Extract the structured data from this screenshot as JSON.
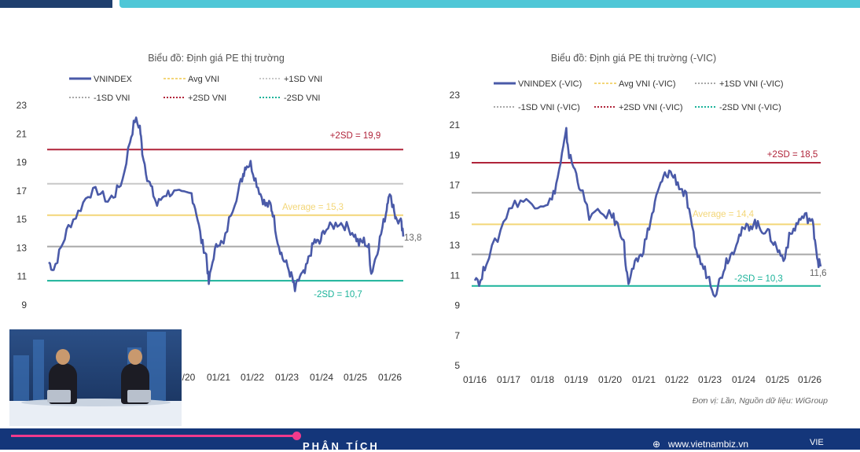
{
  "chart_data": [
    {
      "type": "line",
      "title": "Biểu đồ: Định giá PE thị trường",
      "x_tick_labels": [
        "/20",
        "01/21",
        "01/22",
        "01/23",
        "01/24",
        "01/25",
        "01/26"
      ],
      "y_ticks": [
        9,
        11,
        13,
        15,
        17,
        19,
        21,
        23
      ],
      "ylim": [
        9,
        23
      ],
      "x_range": [
        "01/16",
        "03/26"
      ],
      "legend_placement": "top",
      "series": [
        {
          "name": "VNINDEX",
          "color": "#4a5aa8",
          "style": "solid",
          "points": [
            [
              0,
              12.0
            ],
            [
              2,
              11.5
            ],
            [
              5,
              13.0
            ],
            [
              8,
              14.5
            ],
            [
              12,
              15.5
            ],
            [
              16,
              16.8
            ],
            [
              20,
              17.0
            ],
            [
              24,
              16.3
            ],
            [
              27,
              16.8
            ],
            [
              30,
              17.8
            ],
            [
              33,
              20.5
            ],
            [
              35,
              22.0
            ],
            [
              37,
              21.5
            ],
            [
              38,
              19.8
            ],
            [
              40,
              18.0
            ],
            [
              42,
              17.0
            ],
            [
              44,
              16.0
            ],
            [
              47,
              16.8
            ],
            [
              50,
              16.9
            ],
            [
              54,
              16.7
            ],
            [
              58,
              16.8
            ],
            [
              60,
              15.5
            ],
            [
              62,
              13.5
            ],
            [
              64,
              12.5
            ],
            [
              65,
              10.5
            ],
            [
              67,
              12.5
            ],
            [
              69,
              13.5
            ],
            [
              71,
              13.2
            ],
            [
              74,
              15.5
            ],
            [
              77,
              17.0
            ],
            [
              79,
              18.2
            ],
            [
              80,
              18.8
            ],
            [
              82,
              18.9
            ],
            [
              84,
              17.8
            ],
            [
              86,
              16.8
            ],
            [
              88,
              16.0
            ],
            [
              90,
              16.0
            ],
            [
              91,
              15.5
            ],
            [
              93,
              13.5
            ],
            [
              95,
              12.3
            ],
            [
              97,
              11.7
            ],
            [
              99,
              10.8
            ],
            [
              100,
              10.0
            ],
            [
              102,
              11.0
            ],
            [
              104,
              11.2
            ],
            [
              106,
              12.5
            ],
            [
              108,
              13.5
            ],
            [
              110,
              13.3
            ],
            [
              112,
              14.3
            ],
            [
              115,
              14.5
            ],
            [
              118,
              14.8
            ],
            [
              121,
              14.5
            ],
            [
              124,
              14.0
            ],
            [
              126,
              13.3
            ],
            [
              128,
              13.5
            ],
            [
              130,
              13.0
            ],
            [
              131,
              11.2
            ],
            [
              133,
              12.5
            ],
            [
              135,
              14.0
            ],
            [
              137,
              15.5
            ],
            [
              138,
              16.8
            ],
            [
              140,
              16.0
            ],
            [
              141,
              15.0
            ],
            [
              143,
              14.8
            ],
            [
              144,
              13.8
            ]
          ]
        },
        {
          "name": "Avg VNI",
          "color": "#f3d678",
          "style": "solid",
          "value": 15.3
        },
        {
          "name": "+1SD VNI",
          "color": "#c8c8c8",
          "style": "solid",
          "value": 17.5
        },
        {
          "name": "-1SD VNI",
          "color": "#a8a8a8",
          "style": "solid",
          "value": 13.1
        },
        {
          "name": "+2SD VNI",
          "color": "#b0243a",
          "style": "solid",
          "value": 19.9
        },
        {
          "name": "-2SD VNI",
          "color": "#1bb39a",
          "style": "solid",
          "value": 10.7
        }
      ],
      "annotations": [
        {
          "text": "+2SD = 19,9",
          "color": "#b0243a",
          "value": 19.9
        },
        {
          "text": "Average = 15,3",
          "color": "#f3d678",
          "value": 15.3
        },
        {
          "text": "-2SD = 10,7",
          "color": "#1bb39a",
          "value": 10.7
        },
        {
          "text": "13,8",
          "color": "#666666",
          "value": 13.8
        }
      ]
    },
    {
      "type": "line",
      "title": "Biểu đồ: Định giá PE thị trường (-VIC)",
      "x_tick_labels": [
        "01/16",
        "01/17",
        "01/18",
        "01/19",
        "01/20",
        "01/21",
        "01/22",
        "01/23",
        "01/24",
        "01/25",
        "01/26"
      ],
      "y_ticks": [
        5,
        7,
        9,
        11,
        13,
        15,
        17,
        19,
        21,
        23
      ],
      "ylim": [
        5,
        23
      ],
      "x_range": [
        "01/16",
        "03/26"
      ],
      "legend_placement": "top",
      "series": [
        {
          "name": "VNINDEX (-VIC)",
          "color": "#4a5aa8",
          "style": "solid",
          "points": [
            [
              0,
              11.0
            ],
            [
              2,
              10.5
            ],
            [
              4,
              12.0
            ],
            [
              8,
              13.5
            ],
            [
              12,
              15.5
            ],
            [
              16,
              16.0
            ],
            [
              20,
              15.8
            ],
            [
              24,
              15.8
            ],
            [
              27,
              16.0
            ],
            [
              29,
              17.5
            ],
            [
              31,
              19.5
            ],
            [
              32,
              20.5
            ],
            [
              33,
              19.0
            ],
            [
              35,
              18.0
            ],
            [
              37,
              16.8
            ],
            [
              40,
              15.0
            ],
            [
              44,
              15.1
            ],
            [
              48,
              15.0
            ],
            [
              50,
              14.3
            ],
            [
              52,
              13.5
            ],
            [
              53,
              11.3
            ],
            [
              54,
              10.2
            ],
            [
              56,
              12.0
            ],
            [
              58,
              12.2
            ],
            [
              60,
              13.5
            ],
            [
              62,
              15.0
            ],
            [
              64,
              16.5
            ],
            [
              66,
              17.5
            ],
            [
              68,
              17.9
            ],
            [
              70,
              17.5
            ],
            [
              72,
              16.8
            ],
            [
              74,
              16.2
            ],
            [
              76,
              14.0
            ],
            [
              78,
              12.3
            ],
            [
              80,
              11.5
            ],
            [
              82,
              10.8
            ],
            [
              84,
              9.8
            ],
            [
              86,
              10.8
            ],
            [
              88,
              12.0
            ],
            [
              90,
              12.5
            ],
            [
              92,
              13.5
            ],
            [
              94,
              14.0
            ],
            [
              96,
              14.3
            ],
            [
              98,
              14.5
            ],
            [
              100,
              14.1
            ],
            [
              102,
              14.0
            ],
            [
              104,
              13.4
            ],
            [
              106,
              12.7
            ],
            [
              108,
              12.1
            ],
            [
              110,
              13.5
            ],
            [
              112,
              14.2
            ],
            [
              114,
              14.8
            ],
            [
              116,
              14.9
            ],
            [
              118,
              14.6
            ],
            [
              119,
              13.5
            ],
            [
              120,
              12.0
            ],
            [
              121,
              11.6
            ]
          ]
        },
        {
          "name": "Avg VNI (-VIC)",
          "color": "#f3d678",
          "style": "solid",
          "value": 14.4
        },
        {
          "name": "+1SD VNI (-VIC)",
          "color": "#a8a8a8",
          "style": "solid",
          "value": 16.5
        },
        {
          "name": "-1SD VNI (-VIC)",
          "color": "#a8a8a8",
          "style": "solid",
          "value": 12.4
        },
        {
          "name": "+2SD VNI (-VIC)",
          "color": "#b0243a",
          "style": "solid",
          "value": 18.5
        },
        {
          "name": "-2SD VNI (-VIC)",
          "color": "#1bb39a",
          "style": "solid",
          "value": 10.3
        }
      ],
      "annotations": [
        {
          "text": "+2SD = 18,5",
          "color": "#b0243a",
          "value": 18.5
        },
        {
          "text": "Average = 14,4",
          "color": "#f3d678",
          "value": 14.4
        },
        {
          "text": "-2SD = 10,3",
          "color": "#1bb39a",
          "value": 10.3
        },
        {
          "text": "11,6",
          "color": "#666666",
          "value": 11.6
        }
      ],
      "source_note": "Đơn vị: Lần, Nguồn dữ liệu: WiGroup"
    }
  ],
  "footer": {
    "website": "www.vietnambiz.vn",
    "ticker_text": "PHÂN TÍCH",
    "cc_label": "VIE"
  }
}
